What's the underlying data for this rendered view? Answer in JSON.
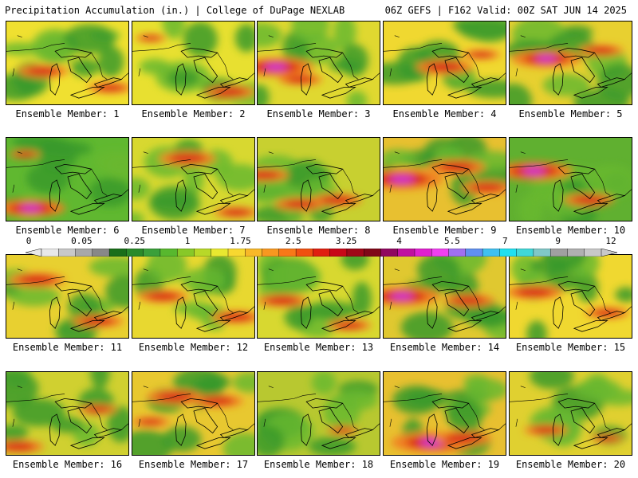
{
  "header": {
    "left": "Precipitation Accumulation (in.) | College of DuPage NEXLAB",
    "right": "06Z GEFS | F162 Valid: 00Z SAT JUN 14 2025"
  },
  "panels": [
    {
      "caption": "Ensemble Member: 1",
      "hot": [
        [
          0.3,
          0.6,
          0.8
        ],
        [
          0.85,
          0.8,
          0.7
        ]
      ],
      "base": "#f0e030"
    },
    {
      "caption": "Ensemble Member: 2",
      "hot": [
        [
          0.15,
          0.2,
          0.5
        ],
        [
          0.8,
          0.85,
          0.8
        ]
      ],
      "base": "#e8e030"
    },
    {
      "caption": "Ensemble Member: 3",
      "hot": [
        [
          0.15,
          0.55,
          1.2
        ],
        [
          0.35,
          0.7,
          0.7
        ]
      ],
      "base": "#e0d830"
    },
    {
      "caption": "Ensemble Member: 4",
      "hot": [
        [
          0.5,
          0.55,
          0.9
        ],
        [
          0.8,
          0.4,
          0.6
        ]
      ],
      "base": "#f0d830"
    },
    {
      "caption": "Ensemble Member: 5",
      "hot": [
        [
          0.3,
          0.45,
          1.1
        ],
        [
          0.75,
          0.35,
          0.7
        ]
      ],
      "base": "#e8d030"
    },
    {
      "caption": "Ensemble Member: 6",
      "hot": [
        [
          0.2,
          0.85,
          1.1
        ],
        [
          0.15,
          0.2,
          0.5
        ]
      ],
      "base": "#60b830"
    },
    {
      "caption": "Ensemble Member: 7",
      "hot": [
        [
          0.45,
          0.25,
          0.9
        ],
        [
          0.85,
          0.9,
          0.7
        ]
      ],
      "base": "#d8d830"
    },
    {
      "caption": "Ensemble Member: 8",
      "hot": [
        [
          0.05,
          0.45,
          0.8
        ],
        [
          0.35,
          0.8,
          0.8
        ],
        [
          0.65,
          0.75,
          0.8
        ]
      ],
      "base": "#c8d030"
    },
    {
      "caption": "Ensemble Member: 9",
      "hot": [
        [
          0.15,
          0.5,
          1.3
        ],
        [
          0.6,
          0.35,
          0.9
        ],
        [
          0.85,
          0.6,
          0.8
        ]
      ],
      "base": "#e8c030"
    },
    {
      "caption": "Ensemble Member: 10",
      "hot": [
        [
          0.2,
          0.4,
          1.2
        ],
        [
          0.65,
          0.75,
          0.8
        ]
      ],
      "base": "#60b030"
    },
    {
      "caption": "Ensemble Member: 11",
      "hot": [
        [
          0.25,
          0.3,
          0.9
        ],
        [
          0.75,
          0.8,
          0.8
        ]
      ],
      "base": "#e8d030"
    },
    {
      "caption": "Ensemble Member: 12",
      "hot": [
        [
          0.25,
          0.5,
          0.8
        ],
        [
          0.85,
          0.75,
          0.8
        ]
      ],
      "base": "#e8d830"
    },
    {
      "caption": "Ensemble Member: 13",
      "hot": [
        [
          0.2,
          0.55,
          0.8
        ],
        [
          0.75,
          0.85,
          0.7
        ]
      ],
      "base": "#d8d830"
    },
    {
      "caption": "Ensemble Member: 14",
      "hot": [
        [
          0.15,
          0.5,
          1.2
        ],
        [
          0.7,
          0.55,
          0.8
        ]
      ],
      "base": "#e0c830"
    },
    {
      "caption": "Ensemble Member: 15",
      "hot": [
        [
          0.2,
          0.45,
          0.9
        ],
        [
          0.8,
          0.7,
          0.7
        ]
      ],
      "base": "#f0d830"
    },
    {
      "caption": "Ensemble Member: 16",
      "hot": [
        [
          0.1,
          0.9,
          0.8
        ],
        [
          0.75,
          0.45,
          0.6
        ]
      ],
      "base": "#d0d030"
    },
    {
      "caption": "Ensemble Member: 17",
      "hot": [
        [
          0.35,
          0.3,
          0.9
        ],
        [
          0.7,
          0.35,
          0.8
        ],
        [
          0.15,
          0.6,
          0.6
        ]
      ],
      "base": "#e8c830"
    },
    {
      "caption": "Ensemble Member: 18",
      "hot": [
        [
          0.7,
          0.7,
          0.5
        ]
      ],
      "base": "#b8c830"
    },
    {
      "caption": "Ensemble Member: 19",
      "hot": [
        [
          0.4,
          0.85,
          1.3
        ],
        [
          0.65,
          0.8,
          0.9
        ]
      ],
      "base": "#e8c030"
    },
    {
      "caption": "Ensemble Member: 20",
      "hot": [
        [
          0.3,
          0.7,
          0.7
        ],
        [
          0.8,
          0.8,
          0.5
        ]
      ],
      "base": "#e0d030"
    }
  ],
  "legend": {
    "labels": [
      "0",
      "0.05",
      "0.25",
      "1",
      "1.75",
      "2.5",
      "3.25",
      "4",
      "5.5",
      "7",
      "9",
      "12"
    ],
    "colors": [
      "#e8e8e8",
      "#c8c8c8",
      "#a8a8a8",
      "#888888",
      "#1a6e1a",
      "#2a8a2a",
      "#3aa03a",
      "#58b82e",
      "#88c828",
      "#b8d828",
      "#e8e830",
      "#f8d830",
      "#f8b828",
      "#f89820",
      "#f87818",
      "#f05010",
      "#e02010",
      "#c80818",
      "#a00818",
      "#800818",
      "#900860",
      "#c010a0",
      "#e020d0",
      "#f040f0",
      "#a070f0",
      "#6090f0",
      "#40c0f0",
      "#20e0f0",
      "#40d8d8",
      "#80c8c8",
      "#a0a0a0",
      "#b0b0b0",
      "#c8c8c8"
    ]
  }
}
